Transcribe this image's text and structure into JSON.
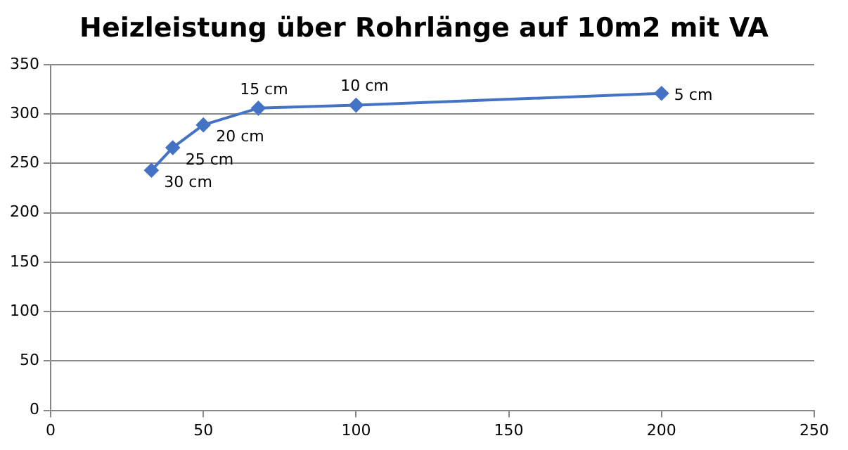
{
  "chart_data": {
    "type": "line",
    "title": "Heizleistung über Rohrlänge auf 10m2 mit VA",
    "x": [
      33,
      40,
      50,
      68,
      100,
      200
    ],
    "values": [
      243,
      266,
      289,
      306,
      309,
      321
    ],
    "color": "#4472c4",
    "xlim": [
      0,
      250
    ],
    "xticks": [
      0,
      50,
      100,
      150,
      200,
      250
    ],
    "ylim": [
      0,
      350
    ],
    "yticks": [
      0,
      50,
      100,
      150,
      200,
      250,
      300,
      350
    ],
    "grid": "y",
    "legend": false,
    "marker": "diamond",
    "line_style": "solid",
    "annotations": [
      {
        "text": "30 cm",
        "x": 33,
        "y": 243
      },
      {
        "text": "25 cm",
        "x": 40,
        "y": 266
      },
      {
        "text": "20 cm",
        "x": 50,
        "y": 289
      },
      {
        "text": "15 cm",
        "x": 68,
        "y": 306
      },
      {
        "text": "10 cm",
        "x": 100,
        "y": 309
      },
      {
        "text": "5 cm",
        "x": 200,
        "y": 321
      }
    ]
  }
}
